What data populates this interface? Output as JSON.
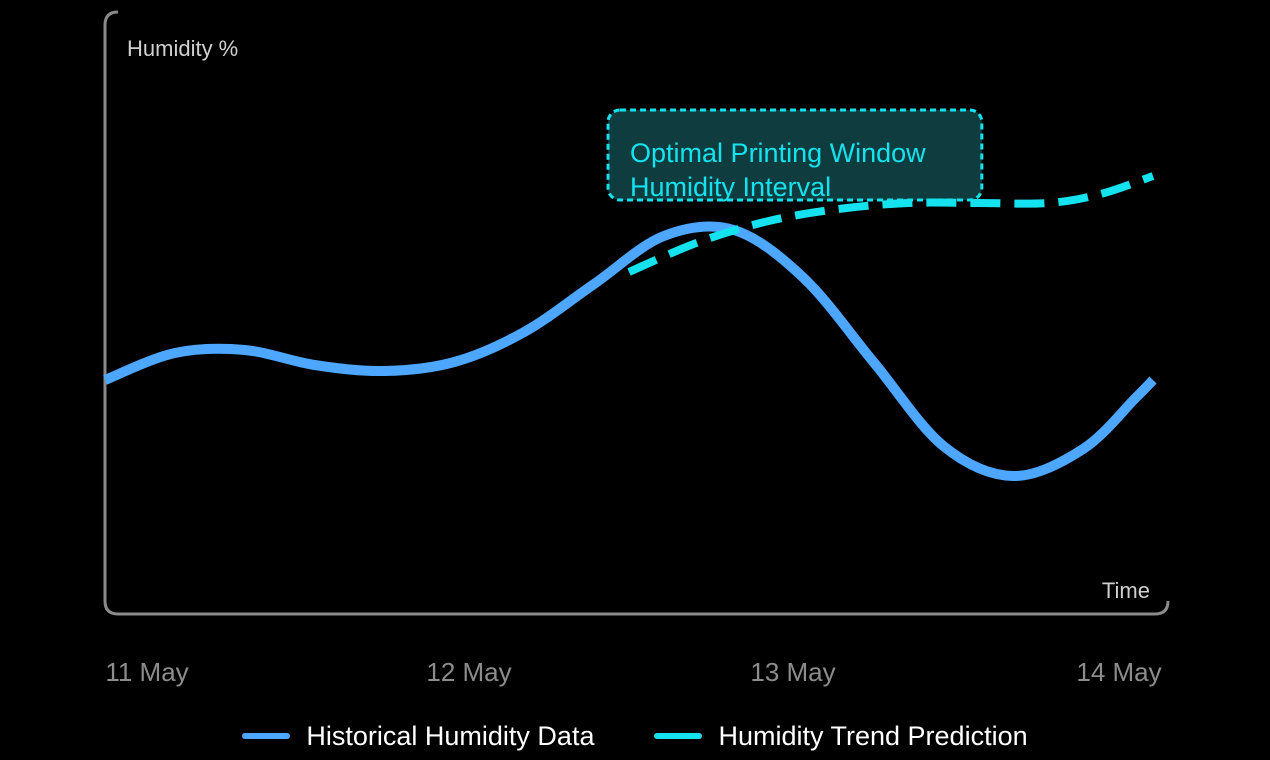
{
  "colors": {
    "background": "#000000",
    "axis": "#8a8a8a",
    "axis_label": "#d0d0d0",
    "tick_label": "#8c8c8c",
    "historical": "#4da6ff",
    "prediction": "#14e3ef",
    "annotation_fill": "#0f3d3f",
    "annotation_border": "#14e3ef",
    "annotation_text": "#14e3ef"
  },
  "chart_data": {
    "type": "line",
    "ylabel": "Humidity %",
    "xlabel": "Time",
    "x_ticks": [
      "11 May",
      "12 May",
      "13 May",
      "14 May"
    ],
    "x_range": [
      0,
      3
    ],
    "y_range": [
      0,
      100
    ],
    "grid": false,
    "legend_position": "bottom-center",
    "series": [
      {
        "name": "Historical Humidity Data",
        "style": "solid",
        "x": [
          0,
          0.2,
          0.4,
          0.6,
          0.8,
          1.0,
          1.2,
          1.4,
          1.6,
          1.8,
          2.0,
          2.2,
          2.4,
          2.6,
          2.8,
          2.95,
          3.0
        ],
        "y": [
          39,
          43.5,
          44,
          41.5,
          40.5,
          42,
          47,
          55,
          63,
          64,
          56,
          42,
          28,
          23,
          27.5,
          36,
          39
        ]
      },
      {
        "name": "Humidity Trend Prediction",
        "style": "dashed",
        "x": [
          1.5,
          1.7,
          1.9,
          2.1,
          2.3,
          2.5,
          2.7,
          2.85,
          3.0
        ],
        "y": [
          57,
          62,
          65.5,
          67.5,
          68.5,
          68.5,
          68.5,
          70,
          73
        ]
      }
    ],
    "annotations": [
      {
        "lines": [
          "Optimal Printing Window",
          "Humidity Interval"
        ],
        "x_range": [
          1.44,
          2.51
        ],
        "y_range": [
          69,
          84
        ]
      }
    ]
  }
}
